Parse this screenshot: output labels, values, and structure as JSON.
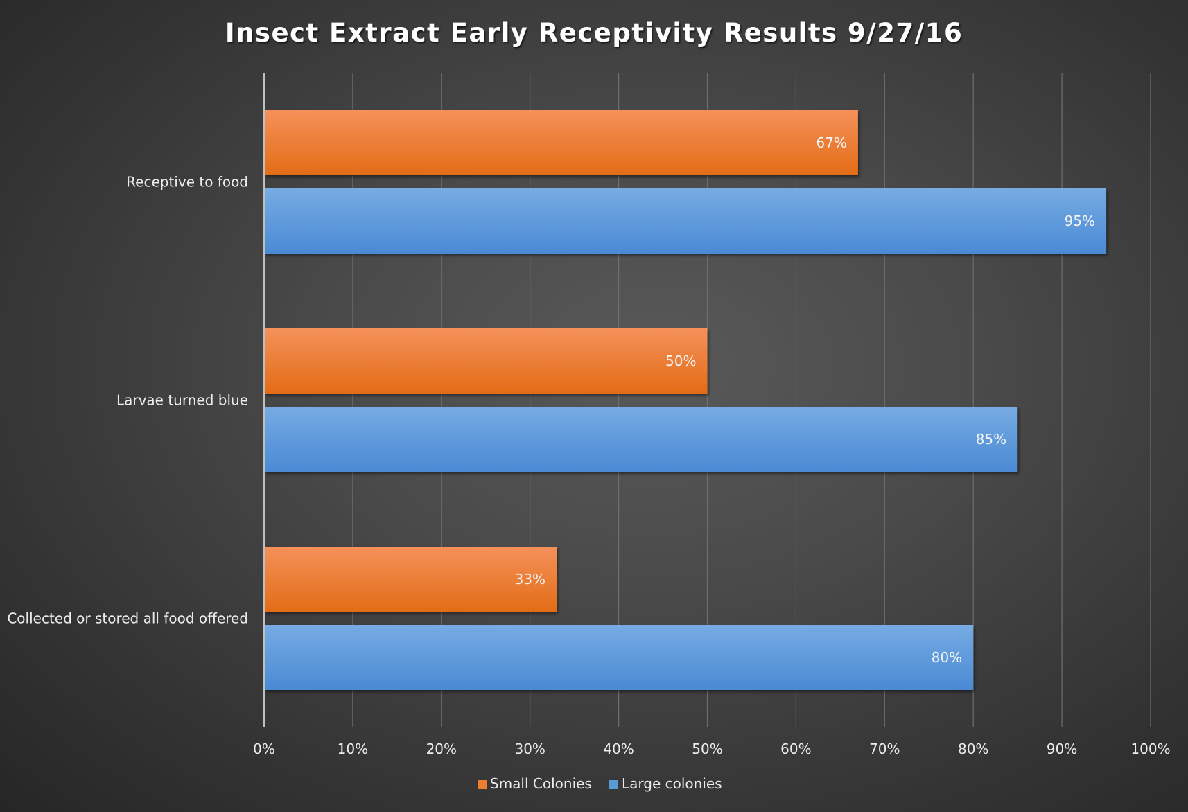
{
  "chart_data": {
    "type": "bar",
    "orientation": "horizontal",
    "title": "Insect Extract Early Receptivity Results 9/27/16",
    "categories": [
      "Receptive to food",
      "Larvae turned blue",
      "Collected or stored all food offered"
    ],
    "series": [
      {
        "name": "Small Colonies",
        "color": "#ed7d31",
        "values": [
          67,
          50,
          33
        ],
        "labels": [
          "67%",
          "50%",
          "33%"
        ]
      },
      {
        "name": "Large colonies",
        "color": "#5b9bd5",
        "values": [
          95,
          85,
          80
        ],
        "labels": [
          "95%",
          "85%",
          "80%"
        ]
      }
    ],
    "x_ticks": [
      "0%",
      "10%",
      "20%",
      "30%",
      "40%",
      "50%",
      "60%",
      "70%",
      "80%",
      "90%",
      "100%"
    ],
    "xlim": [
      0,
      100
    ],
    "grid": "vertical",
    "legend_position": "bottom"
  }
}
